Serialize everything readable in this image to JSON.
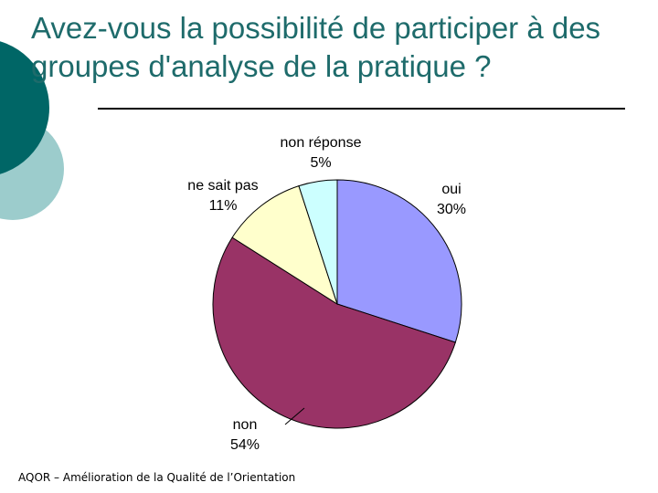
{
  "slide": {
    "title": "Avez-vous la possibilité de participer à des groupes d'analyse de la pratique ?",
    "footer": "AQOR – Amélioration de la Qualité de l’Orientation"
  },
  "theme": {
    "title_color": "#1e6b6b",
    "circle_dark": "#006666",
    "circle_light": "#9ccccc"
  },
  "chart_data": {
    "type": "pie",
    "title": "",
    "slices": [
      {
        "name": "oui",
        "value": 30,
        "label": "30%",
        "color": "#9999ff"
      },
      {
        "name": "non",
        "value": 54,
        "label": "54%",
        "color": "#993366"
      },
      {
        "name": "ne sait pas",
        "value": 11,
        "label": "11%",
        "color": "#ffffcc"
      },
      {
        "name": "non réponse",
        "value": 5,
        "label": "5%",
        "color": "#ccffff"
      }
    ],
    "start_angle": "12 o'clock",
    "direction": "clockwise",
    "legend": "none"
  }
}
